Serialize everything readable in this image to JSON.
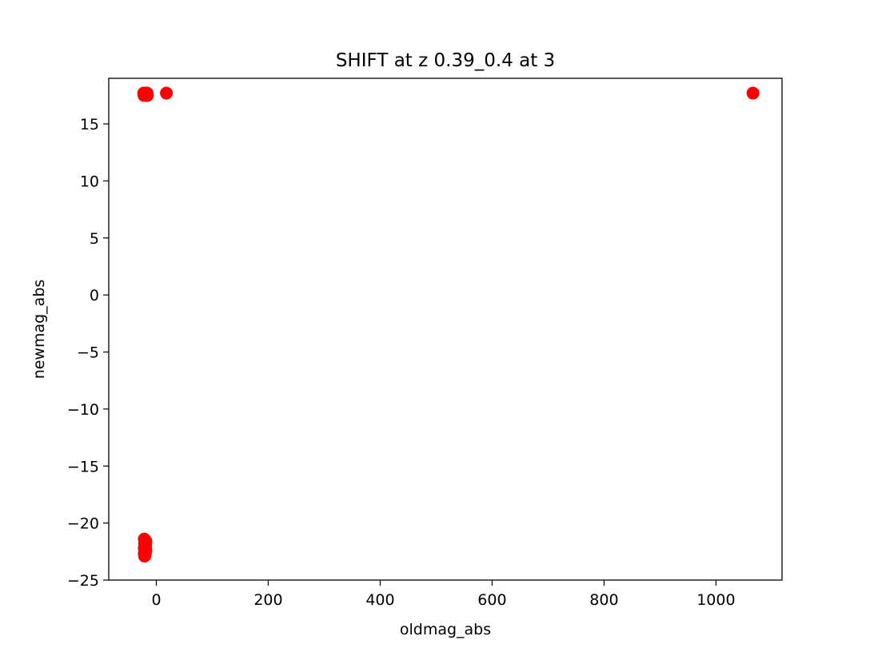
{
  "chart_data": {
    "type": "scatter",
    "title": "SHIFT at z 0.39_0.4 at 3",
    "xlabel": "oldmag_abs",
    "ylabel": "newmag_abs",
    "xlim": [
      -85,
      1118
    ],
    "ylim": [
      -25,
      19
    ],
    "xticks": [
      0,
      200,
      400,
      600,
      800,
      1000
    ],
    "yticks": [
      -25,
      -20,
      -15,
      -10,
      -5,
      0,
      5,
      10,
      15
    ],
    "xtick_labels": [
      "0",
      "200",
      "400",
      "600",
      "800",
      "1000"
    ],
    "ytick_labels": [
      "−25",
      "−20",
      "−15",
      "−10",
      "−5",
      "0",
      "5",
      "10",
      "15"
    ],
    "grid": false,
    "marker_color": "#ff0000",
    "points": [
      {
        "x": -22.5,
        "y": 17.7
      },
      {
        "x": -21.0,
        "y": 17.7
      },
      {
        "x": -19.5,
        "y": 17.7
      },
      {
        "x": -18.0,
        "y": 17.7
      },
      {
        "x": -16.5,
        "y": 17.7
      },
      {
        "x": -22.0,
        "y": 17.5
      },
      {
        "x": -18.0,
        "y": 17.5
      },
      {
        "x": -16.0,
        "y": 17.5
      },
      {
        "x": 18.0,
        "y": 17.7
      },
      {
        "x": 1066.0,
        "y": 17.7
      },
      {
        "x": -21.5,
        "y": -21.4
      },
      {
        "x": -20.0,
        "y": -21.5
      },
      {
        "x": -18.5,
        "y": -21.6
      },
      {
        "x": -21.0,
        "y": -21.8
      },
      {
        "x": -19.5,
        "y": -22.0
      },
      {
        "x": -21.5,
        "y": -22.2
      },
      {
        "x": -20.0,
        "y": -22.3
      },
      {
        "x": -18.5,
        "y": -22.4
      },
      {
        "x": -21.0,
        "y": -22.5
      },
      {
        "x": -19.5,
        "y": -22.6
      },
      {
        "x": -21.5,
        "y": -22.7
      },
      {
        "x": -20.0,
        "y": -22.8
      },
      {
        "x": -21.0,
        "y": -22.9
      },
      {
        "x": -19.0,
        "y": -22.0
      }
    ]
  }
}
